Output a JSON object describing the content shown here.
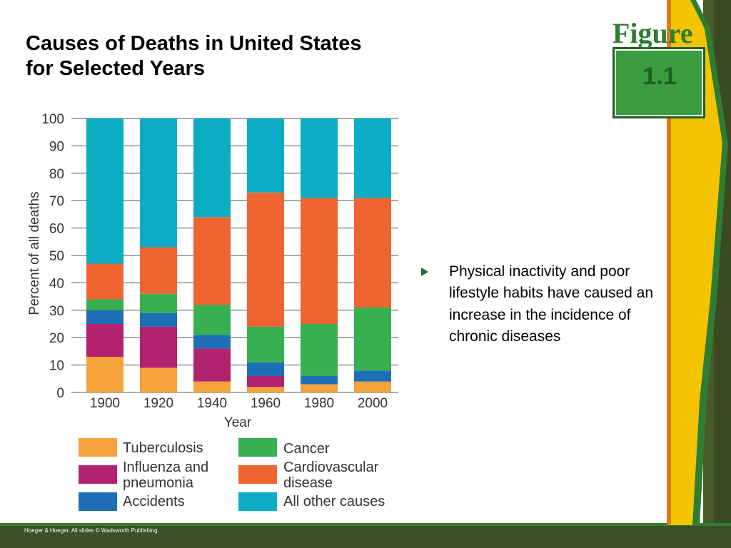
{
  "title_lines": [
    "Causes of Deaths in United States",
    "for Selected Years"
  ],
  "badge": {
    "label": "Figure",
    "number": "1.1"
  },
  "bullet": "Physical inactivity and poor lifestyle habits have caused an increase in the incidence of chronic diseases",
  "footer": "Hoeger & Hoeger. All slides © Wadsworth Publishing.",
  "colors": {
    "Tuberculosis": "#f6a23c",
    "Influenza and pneumonia": "#b3226f",
    "Accidents": "#1f6fb7",
    "Cancer": "#36b050",
    "Cardiovascular disease": "#ef6532",
    "All other causes": "#0cadc4"
  },
  "chart_data": {
    "type": "bar",
    "stacked": true,
    "title": "",
    "xlabel": "Year",
    "ylabel": "Percent of all deaths",
    "ylim": [
      0,
      100
    ],
    "yticks": [
      0,
      10,
      20,
      30,
      40,
      50,
      60,
      70,
      80,
      90,
      100
    ],
    "grid": true,
    "legend_position": "bottom",
    "categories": [
      "1900",
      "1920",
      "1940",
      "1960",
      "1980",
      "2000"
    ],
    "series": [
      {
        "name": "Tuberculosis",
        "values": [
          13,
          9,
          4,
          2,
          3,
          4
        ]
      },
      {
        "name": "Influenza and pneumonia",
        "values": [
          12,
          15,
          12,
          4,
          0,
          0
        ]
      },
      {
        "name": "Accidents",
        "values": [
          5,
          5,
          5,
          5,
          3,
          4
        ]
      },
      {
        "name": "Cancer",
        "values": [
          4,
          7,
          11,
          13,
          19,
          23
        ]
      },
      {
        "name": "Cardiovascular disease",
        "values": [
          13,
          17,
          32,
          49,
          46,
          40
        ]
      },
      {
        "name": "All other causes",
        "values": [
          53,
          47,
          36,
          27,
          29,
          29
        ]
      }
    ],
    "legend": [
      {
        "lines": [
          "Tuberculosis"
        ]
      },
      {
        "lines": [
          "Influenza and",
          "pneumonia"
        ]
      },
      {
        "lines": [
          "Accidents"
        ]
      },
      {
        "lines": [
          "Cancer"
        ]
      },
      {
        "lines": [
          "Cardiovascular",
          "disease"
        ]
      },
      {
        "lines": [
          "All other causes"
        ]
      }
    ]
  }
}
